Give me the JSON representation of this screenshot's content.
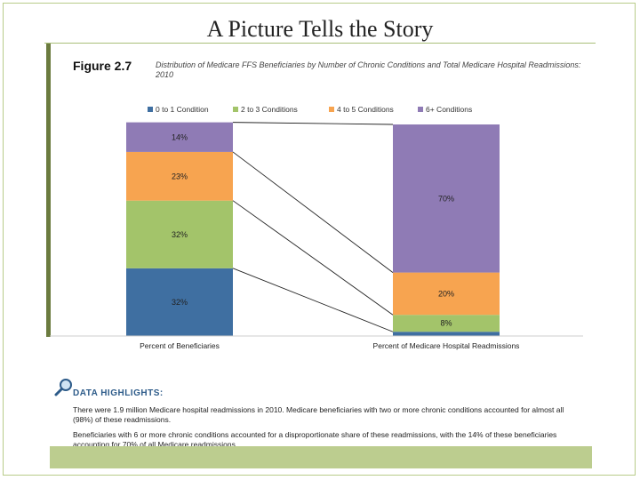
{
  "slide": {
    "title": "A Picture Tells the Story"
  },
  "figure": {
    "label": "Figure 2.7",
    "caption": "Distribution of Medicare FFS Beneficiaries by Number of Chronic Conditions and Total Medicare Hospital Readmissions: 2010"
  },
  "highlights": {
    "title": "DATA HIGHLIGHTS:",
    "paragraph1": "There were 1.9 million Medicare hospital readmissions in 2010. Medicare beneficiaries with two or more chronic conditions accounted for almost all (98%) of these readmissions.",
    "paragraph2": "Beneficiaries with 6 or more chronic conditions accounted for a disproportionate share of these readmissions, with the 14% of these beneficiaries accounting for 70% of all Medicare readmissions."
  },
  "colors": {
    "series": [
      "#3f6fa1",
      "#a3c46a",
      "#f7a450",
      "#8f7bb5"
    ],
    "accent": "#6b7b3f",
    "highlight_title": "#2d5b89"
  },
  "chart_data": {
    "type": "bar",
    "stacked": true,
    "categories": [
      "Percent of Beneficiaries",
      "Percent of Medicare Hospital Readmissions"
    ],
    "series": [
      {
        "name": "0 to 1 Condition",
        "values": [
          32,
          2
        ],
        "labels": [
          "32%",
          ""
        ]
      },
      {
        "name": "2 to 3 Conditions",
        "values": [
          32,
          8
        ],
        "labels": [
          "32%",
          "8%"
        ]
      },
      {
        "name": "4 to 5 Conditions",
        "values": [
          23,
          20
        ],
        "labels": [
          "23%",
          "20%"
        ]
      },
      {
        "name": "6+ Conditions",
        "values": [
          14,
          70
        ],
        "labels": [
          "14%",
          "70%"
        ]
      }
    ],
    "legend_position": "top",
    "ylim": [
      0,
      100
    ],
    "connectors": true
  }
}
